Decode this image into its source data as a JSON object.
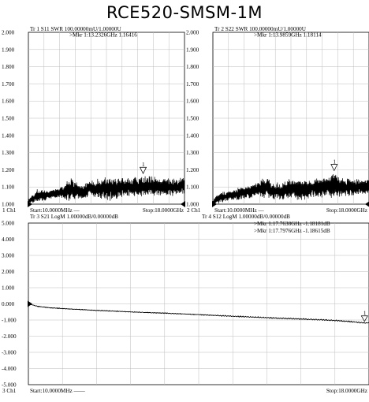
{
  "title": "RCE520-SMSM-1M",
  "chart_data": [
    {
      "type": "line",
      "name": "S11 SWR",
      "header": "Tr 1  S11 SWR 100.00000mU/1.00000U",
      "marker": ">Mkr 1:13.2326GHz 1.16416",
      "marker_freq_ghz": 13.2326,
      "marker_value": 1.16416,
      "marker_label": "1",
      "footer_id": "1  Ch1",
      "start_label": "Start:10.0000MHz  —",
      "stop_label": "Stop:18.0000GHz",
      "xlim": [
        0.01,
        18.0
      ],
      "ylim": [
        1.0,
        2.0
      ],
      "yticks": [
        "2.000",
        "1.900",
        "1.800",
        "1.700",
        "1.600",
        "1.500",
        "1.400",
        "1.300",
        "1.200",
        "1.100",
        "1.000"
      ],
      "series_shape": {
        "x": [
          0.01,
          0.5,
          1,
          2,
          3,
          4,
          4.5,
          5,
          6,
          6.5,
          7,
          8,
          9,
          10,
          11,
          12,
          13,
          14,
          15,
          16,
          17,
          18
        ],
        "base": [
          1.02,
          1.03,
          1.05,
          1.05,
          1.06,
          1.07,
          1.08,
          1.08,
          1.07,
          1.07,
          1.09,
          1.09,
          1.09,
          1.09,
          1.1,
          1.1,
          1.1,
          1.11,
          1.1,
          1.1,
          1.1,
          1.11
        ],
        "amp": [
          0.01,
          0.03,
          0.04,
          0.03,
          0.03,
          0.04,
          0.06,
          0.07,
          0.05,
          0.05,
          0.05,
          0.06,
          0.07,
          0.07,
          0.06,
          0.06,
          0.07,
          0.06,
          0.06,
          0.06,
          0.05,
          0.06
        ]
      }
    },
    {
      "type": "line",
      "name": "S22 SWR",
      "header": "Tr 2  S22 SWR 100.00000mU/1.00000U",
      "marker": ">Mkr 1:13.9859GHz 1.18114",
      "marker_freq_ghz": 13.9859,
      "marker_value": 1.18114,
      "marker_label": "1",
      "footer_id": "2  Ch1",
      "start_label": "Start:10.0000MHz  —",
      "stop_label": "Stop:18.0000GHz",
      "xlim": [
        0.01,
        18.0
      ],
      "ylim": [
        1.0,
        2.0
      ],
      "yticks": [
        "2.000",
        "1.900",
        "1.800",
        "1.700",
        "1.600",
        "1.500",
        "1.400",
        "1.300",
        "1.200",
        "1.100",
        "1.000"
      ],
      "series_shape": {
        "x": [
          0.01,
          0.5,
          1,
          2,
          3,
          4,
          5,
          6,
          6.5,
          7,
          8,
          9,
          10,
          11,
          12,
          13,
          14,
          15,
          16,
          17,
          18
        ],
        "base": [
          1.01,
          1.03,
          1.04,
          1.05,
          1.06,
          1.07,
          1.08,
          1.1,
          1.09,
          1.07,
          1.08,
          1.09,
          1.09,
          1.09,
          1.1,
          1.1,
          1.11,
          1.1,
          1.1,
          1.1,
          1.1
        ],
        "amp": [
          0.01,
          0.03,
          0.03,
          0.03,
          0.04,
          0.04,
          0.05,
          0.07,
          0.06,
          0.05,
          0.06,
          0.06,
          0.07,
          0.06,
          0.06,
          0.07,
          0.07,
          0.06,
          0.06,
          0.05,
          0.05
        ]
      }
    },
    {
      "type": "line",
      "name": "S21 LogM",
      "header": "Tr 3  S21 LogM 1.00000dB/0.00000dB",
      "footer_id": "3  Ch1",
      "start_label": "Start:10.0000MHz  ——",
      "stop_label": "Stop:18.0000GHz",
      "xlim": [
        0.01,
        18.0
      ],
      "ylim": [
        -5.0,
        5.0
      ],
      "yticks": [
        "5.000",
        "4.000",
        "3.000",
        "2.000",
        "1.000",
        "0.000",
        "-1.000",
        "-2.000",
        "-3.000",
        "-4.000",
        "-5.000"
      ],
      "x_ghz": [
        0.01,
        0.5,
        1,
        2,
        3,
        4,
        5,
        6,
        7,
        8,
        9,
        10,
        11,
        12,
        13,
        14,
        15,
        16,
        17,
        17.7638,
        18
      ],
      "values_db": [
        0.0,
        -0.15,
        -0.22,
        -0.3,
        -0.36,
        -0.42,
        -0.47,
        -0.52,
        -0.56,
        -0.61,
        -0.66,
        -0.72,
        -0.77,
        -0.82,
        -0.87,
        -0.91,
        -0.96,
        -1.01,
        -1.09,
        -1.18181,
        -1.16
      ]
    },
    {
      "type": "line",
      "name": "S12 LogM",
      "header": "Tr 4  S12 LogM 1.00000dB/0.00000dB",
      "marker": ">Mkr 1:17.7976GHz -1.18615dB",
      "marker_freq_ghz": 17.7976,
      "marker_value": -1.18615,
      "marker_label": "1",
      "x_ghz": [
        0.01,
        0.5,
        1,
        2,
        3,
        4,
        5,
        6,
        7,
        8,
        9,
        10,
        11,
        12,
        13,
        14,
        15,
        16,
        17,
        17.7976,
        18
      ],
      "values_db": [
        0.0,
        -0.16,
        -0.23,
        -0.31,
        -0.37,
        -0.43,
        -0.48,
        -0.53,
        -0.57,
        -0.62,
        -0.67,
        -0.73,
        -0.78,
        -0.83,
        -0.88,
        -0.92,
        -0.97,
        -1.02,
        -1.1,
        -1.18615,
        -1.17
      ]
    },
    {
      "marker3": ">Mkr 1:17.7638GHz -1.18181dB",
      "marker3_freq_ghz": 17.7638,
      "marker3_value": -1.18181,
      "marker3_label": "1"
    }
  ]
}
